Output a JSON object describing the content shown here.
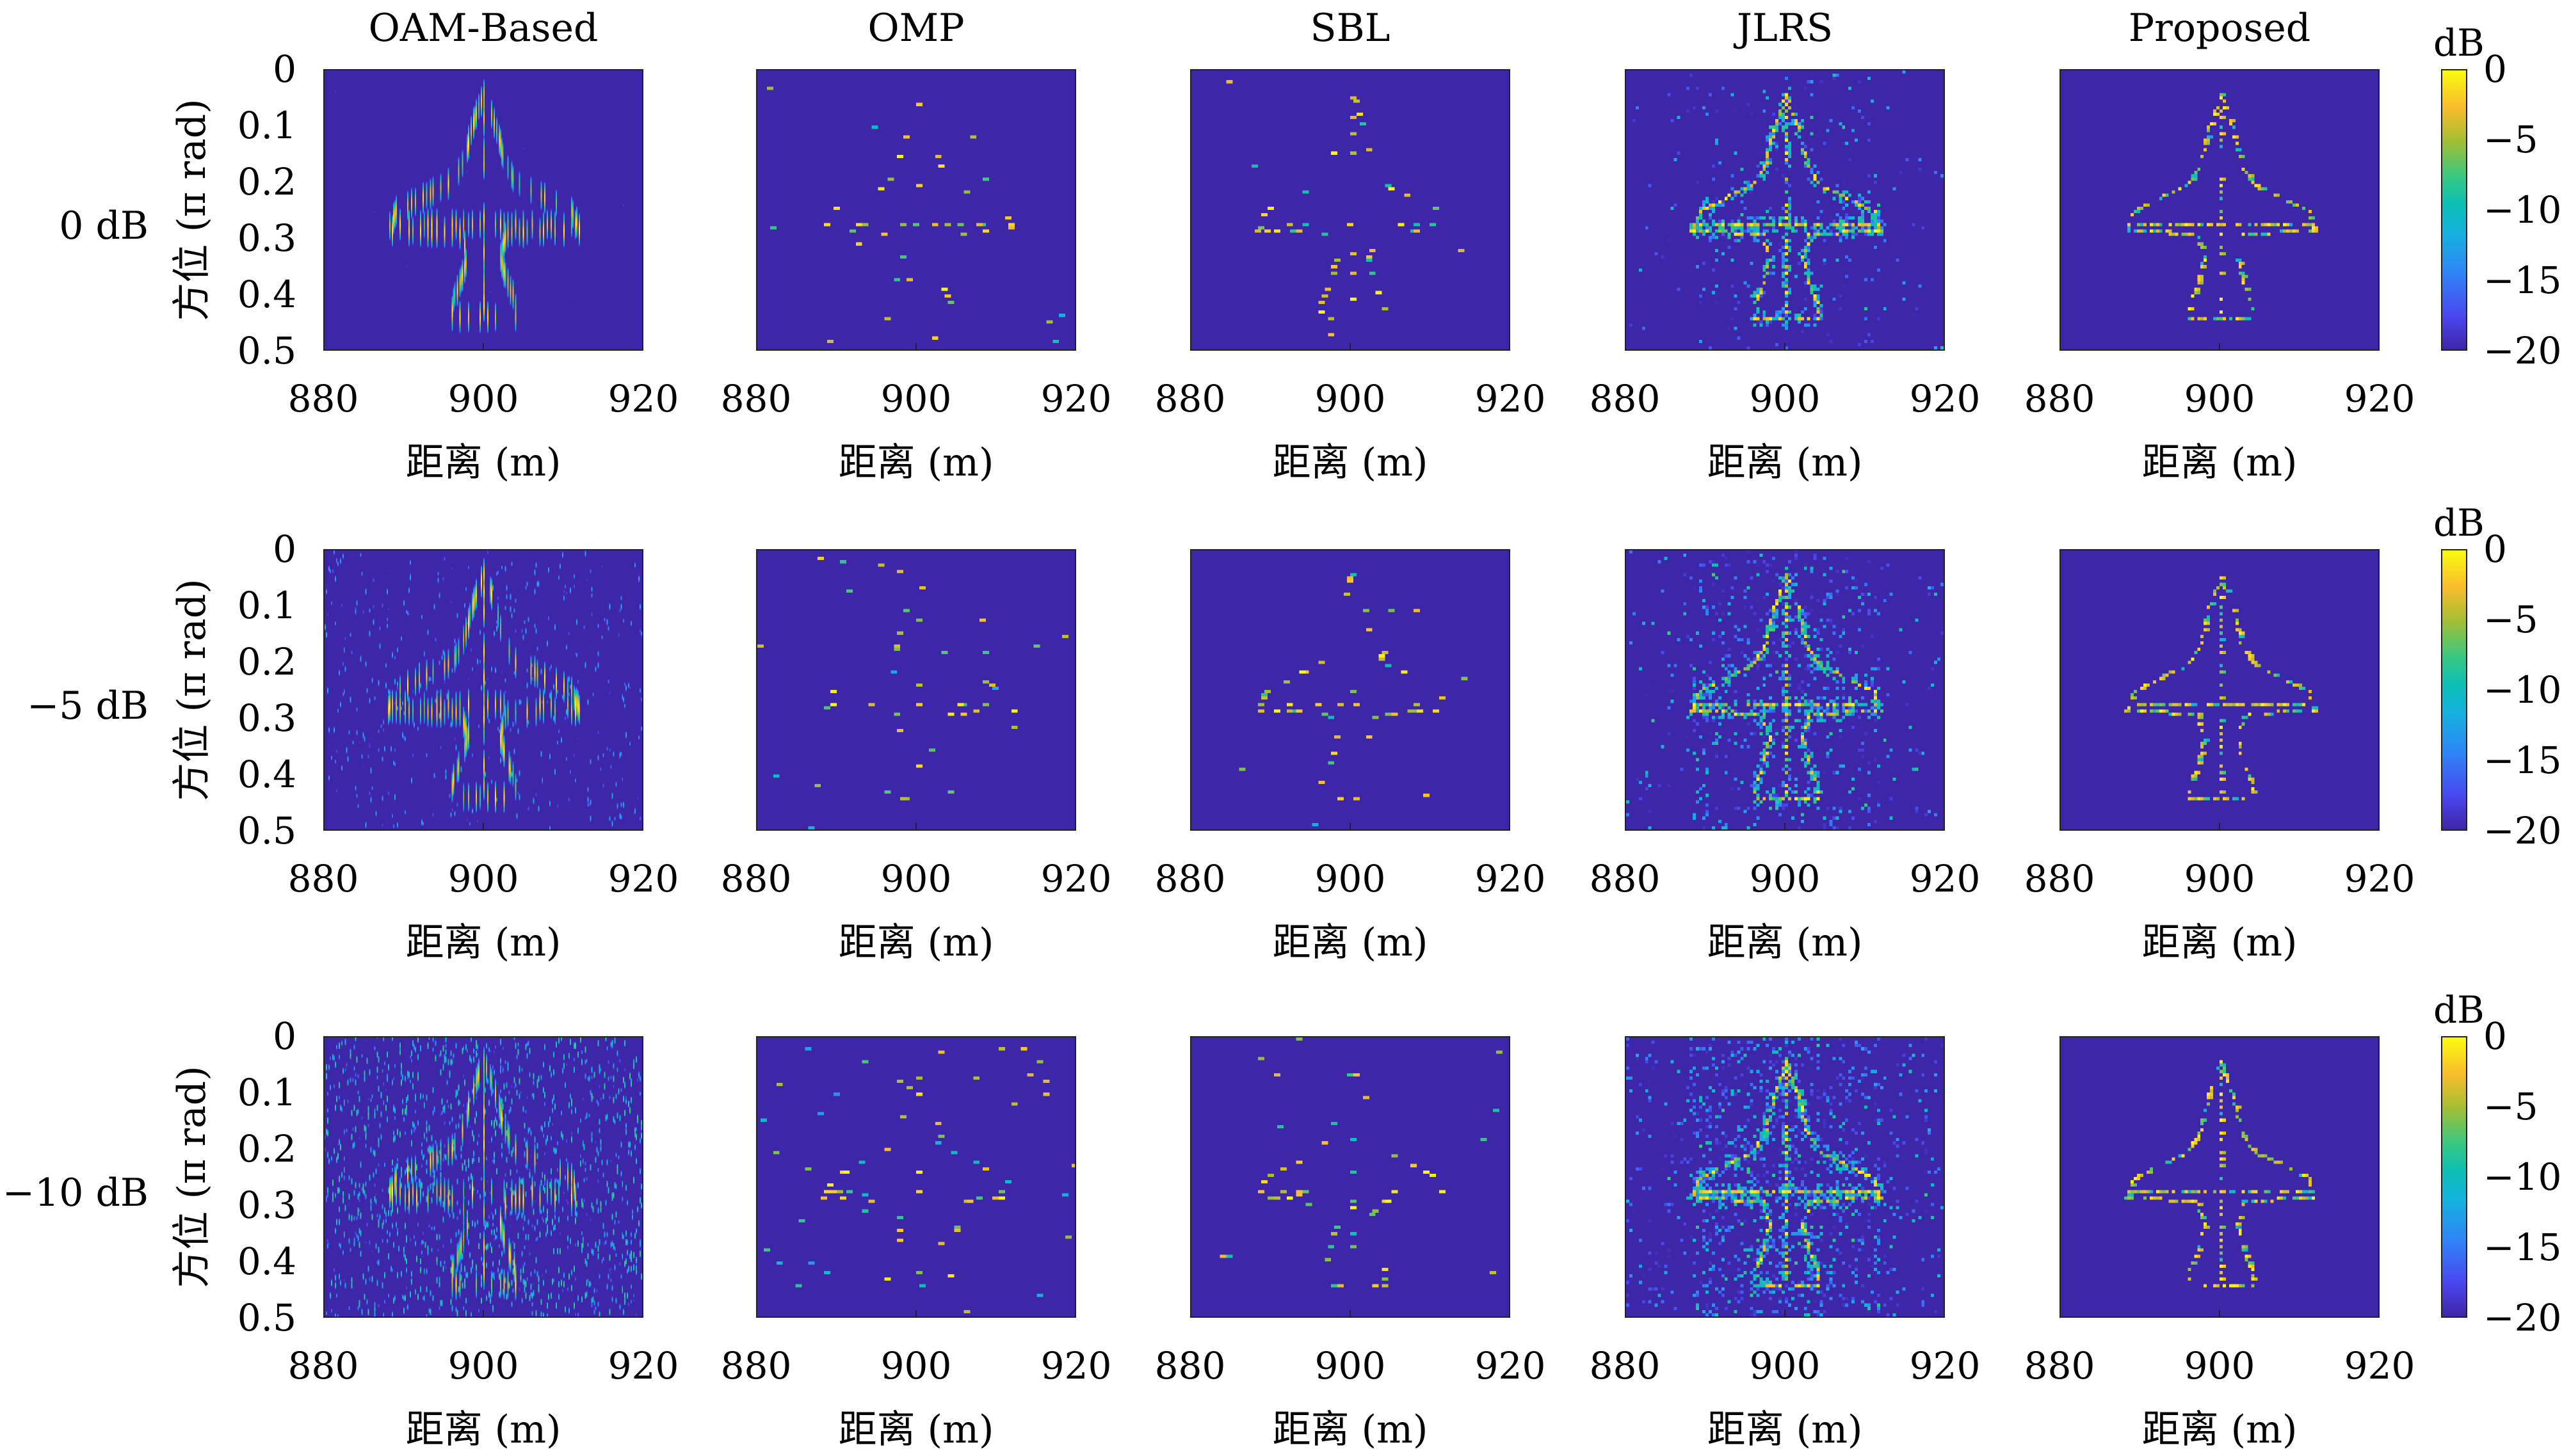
{
  "chart_data": {
    "type": "heatmap",
    "layout": "3 rows x 5 columns of range-azimuth images",
    "column_titles": [
      "OAM-Based",
      "OMP",
      "SBL",
      "JLRS",
      "Proposed"
    ],
    "row_labels": [
      "0 dB",
      "−5 dB",
      "−10 dB"
    ],
    "xlabel": "距离 (m)",
    "ylabel": "方位 (π rad)",
    "xlim": [
      880,
      920
    ],
    "ylim": [
      0,
      0.5
    ],
    "x_ticks": [
      "880",
      "900",
      "920"
    ],
    "y_ticks": [
      "0",
      "0.1",
      "0.2",
      "0.3",
      "0.4",
      "0.5"
    ],
    "colorbar": {
      "label": "dB",
      "range": [
        -20,
        0
      ],
      "ticks": [
        "0",
        "−5",
        "−10",
        "−15",
        "−20"
      ],
      "colormap": "parula"
    },
    "target": "airplane-shaped scatterer model centered at 900 m, 0.25π rad",
    "snr_values_db": [
      0,
      -5,
      -10
    ]
  },
  "colors": {
    "background": "#3e26a8",
    "peak": "#f9fb0e"
  }
}
